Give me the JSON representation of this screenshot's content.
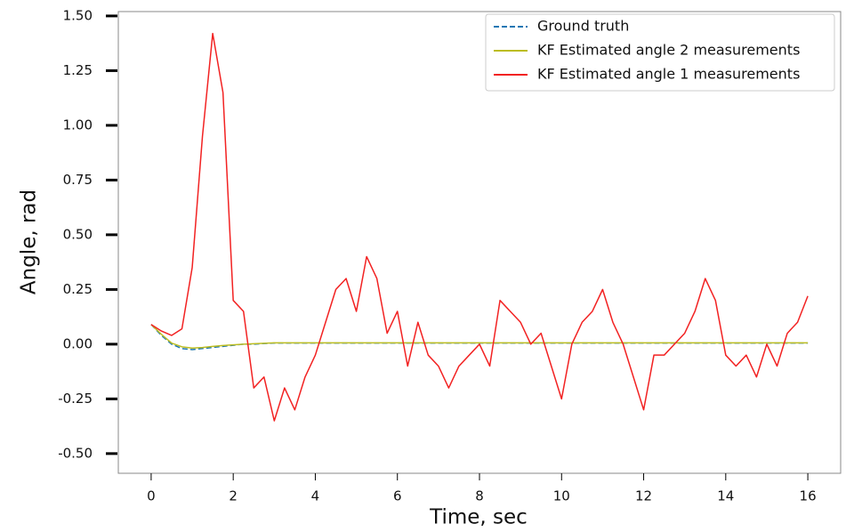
{
  "chart_data": {
    "type": "line",
    "xlabel": "Time, sec",
    "ylabel": "Angle, rad",
    "x": [
      0,
      0.25,
      0.5,
      0.75,
      1,
      1.25,
      1.5,
      1.75,
      2,
      2.25,
      2.5,
      2.75,
      3,
      3.25,
      3.5,
      3.75,
      4,
      4.25,
      4.5,
      4.75,
      5,
      5.25,
      5.5,
      5.75,
      6,
      6.25,
      6.5,
      6.75,
      7,
      7.25,
      7.5,
      7.75,
      8,
      8.25,
      8.5,
      8.75,
      9,
      9.25,
      9.5,
      9.75,
      10,
      10.25,
      10.5,
      10.75,
      11,
      11.25,
      11.5,
      11.75,
      12,
      12.25,
      12.5,
      12.75,
      13,
      13.25,
      13.5,
      13.75,
      14,
      14.25,
      14.5,
      14.75,
      15,
      15.25,
      15.5,
      15.75,
      16
    ],
    "series": [
      {
        "name": "Ground truth",
        "color": "#1f77b4",
        "linestyle": "dashed",
        "values": [
          0.09,
          0.04,
          0.0,
          -0.02,
          -0.025,
          -0.02,
          -0.015,
          -0.01,
          -0.005,
          0.0,
          0.0,
          0.003,
          0.005,
          0.005,
          0.005,
          0.005,
          0.005,
          0.005,
          0.005,
          0.005,
          0.005,
          0.005,
          0.005,
          0.005,
          0.005,
          0.005,
          0.005,
          0.005,
          0.005,
          0.005,
          0.005,
          0.005,
          0.005,
          0.005,
          0.005,
          0.005,
          0.005,
          0.005,
          0.005,
          0.005,
          0.005,
          0.005,
          0.005,
          0.005,
          0.005,
          0.005,
          0.005,
          0.005,
          0.005,
          0.005,
          0.005,
          0.005,
          0.005,
          0.005,
          0.005,
          0.005,
          0.005,
          0.005,
          0.005,
          0.005,
          0.005,
          0.005,
          0.005,
          0.005,
          0.005
        ]
      },
      {
        "name": "KF Estimated angle 2 measurements",
        "color": "#bcbd22",
        "linestyle": "solid",
        "values": [
          0.09,
          0.045,
          0.005,
          -0.012,
          -0.018,
          -0.015,
          -0.01,
          -0.006,
          -0.003,
          0.0,
          0.002,
          0.004,
          0.006,
          0.006,
          0.006,
          0.006,
          0.006,
          0.006,
          0.006,
          0.006,
          0.006,
          0.006,
          0.006,
          0.006,
          0.006,
          0.006,
          0.006,
          0.006,
          0.006,
          0.006,
          0.006,
          0.006,
          0.006,
          0.006,
          0.006,
          0.006,
          0.006,
          0.006,
          0.006,
          0.006,
          0.006,
          0.006,
          0.006,
          0.006,
          0.006,
          0.006,
          0.006,
          0.006,
          0.006,
          0.006,
          0.006,
          0.006,
          0.006,
          0.006,
          0.006,
          0.006,
          0.006,
          0.006,
          0.006,
          0.006,
          0.006,
          0.006,
          0.006,
          0.006,
          0.006
        ]
      },
      {
        "name": "KF Estimated angle 1 measurements",
        "color": "#f22222",
        "linestyle": "solid",
        "values": [
          0.09,
          0.06,
          0.04,
          0.07,
          0.35,
          0.95,
          1.42,
          1.15,
          0.2,
          0.15,
          -0.2,
          -0.15,
          -0.35,
          -0.2,
          -0.3,
          -0.15,
          -0.05,
          0.1,
          0.25,
          0.3,
          0.15,
          0.4,
          0.3,
          0.05,
          0.15,
          -0.1,
          0.1,
          -0.05,
          -0.1,
          -0.2,
          -0.1,
          -0.05,
          0.0,
          -0.1,
          0.2,
          0.15,
          0.1,
          0.0,
          0.05,
          -0.1,
          -0.25,
          0.0,
          0.1,
          0.15,
          0.25,
          0.1,
          0.0,
          -0.15,
          -0.3,
          -0.05,
          -0.05,
          0.0,
          0.05,
          0.15,
          0.3,
          0.2,
          -0.05,
          -0.1,
          -0.05,
          -0.15,
          0.0,
          -0.1,
          0.05,
          0.1,
          0.22
        ]
      }
    ],
    "xlim": [
      -0.8,
      16.8
    ],
    "ylim": [
      -0.59,
      1.52
    ],
    "xticks": [
      0,
      2,
      4,
      6,
      8,
      10,
      12,
      14,
      16
    ],
    "yticks": [
      {
        "value": 1.5,
        "label": "1.50"
      },
      {
        "value": 1.25,
        "label": "1.25"
      },
      {
        "value": 1.0,
        "label": "1.00"
      },
      {
        "value": 0.75,
        "label": "0.75"
      },
      {
        "value": 0.5,
        "label": "0.50"
      },
      {
        "value": 0.25,
        "label": "0.25"
      },
      {
        "value": 0.0,
        "label": "0.00"
      },
      {
        "value": -0.25,
        "label": "-0.25"
      },
      {
        "value": -0.5,
        "label": "-0.50"
      }
    ],
    "grid": false,
    "legend": "upper right"
  }
}
